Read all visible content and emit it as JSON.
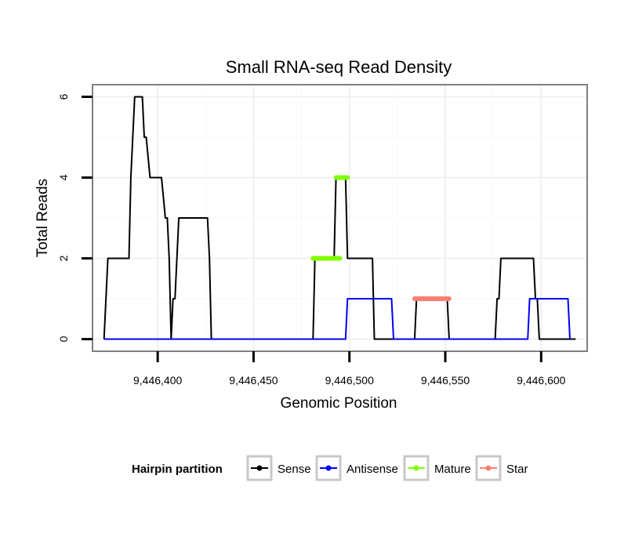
{
  "chart_data": {
    "type": "line",
    "title": "Small RNA-seq Read Density",
    "xlabel": "Genomic Position",
    "ylabel": "Total Reads",
    "xlim": [
      9446366,
      9446624
    ],
    "ylim": [
      -0.3,
      6.3
    ],
    "x_ticks": [
      9446400,
      9446450,
      9446500,
      9446550,
      9446600
    ],
    "x_tick_labels": [
      "9,446,400",
      "9,446,450",
      "9,446,500",
      "9,446,550",
      "9,446,600"
    ],
    "y_ticks": [
      0,
      2,
      4,
      6
    ],
    "y_tick_labels": [
      "0",
      "2",
      "4",
      "6"
    ],
    "grid": true,
    "legend": {
      "title": "Hairpin partition",
      "position": "bottom",
      "entries": [
        {
          "label": "Sense",
          "color": "#000000"
        },
        {
          "label": "Antisense",
          "color": "#0000ff"
        },
        {
          "label": "Mature",
          "color": "#7fff00"
        },
        {
          "label": "Star",
          "color": "#fa8072"
        }
      ]
    },
    "series": [
      {
        "name": "Sense",
        "color": "#000000",
        "x": [
          9446372,
          9446374,
          9446380,
          9446385,
          9446386,
          9446388,
          9446392,
          9446393,
          9446394,
          9446396,
          9446402,
          9446403,
          9446404,
          9446405,
          9446406,
          9446407,
          9446408,
          9446409,
          9446411,
          9446426,
          9446427,
          9446428,
          9446481,
          9446482,
          9446492,
          9446493,
          9446498,
          9446499,
          9446512,
          9446513,
          9446534,
          9446535,
          9446551,
          9446552,
          9446576,
          9446577,
          9446578,
          9446579,
          9446596,
          9446597,
          9446598,
          9446599,
          9446618
        ],
        "y": [
          0,
          2,
          2,
          2,
          4,
          6,
          6,
          5,
          5,
          4,
          4,
          3.5,
          3,
          3,
          2,
          0,
          1,
          1,
          3,
          3,
          2,
          0,
          0,
          2,
          2,
          4,
          4,
          2,
          2,
          0,
          0,
          1,
          1,
          0,
          0,
          1,
          1,
          2,
          2,
          1,
          1,
          0,
          0
        ]
      },
      {
        "name": "Antisense",
        "color": "#0000ff",
        "x": [
          9446372,
          9446498,
          9446499,
          9446522,
          9446523,
          9446593,
          9446594,
          9446614,
          9446615
        ],
        "y": [
          0,
          0,
          1,
          1,
          0,
          0,
          1,
          1,
          0
        ]
      },
      {
        "name": "Mature",
        "color": "#7fff00",
        "segments": [
          {
            "x0": 9446481,
            "x1": 9446495,
            "y": 2
          },
          {
            "x0": 9446493,
            "x1": 9446499,
            "y": 4
          }
        ]
      },
      {
        "name": "Star",
        "color": "#fa8072",
        "segments": [
          {
            "x0": 9446534,
            "x1": 9446552,
            "y": 1
          }
        ]
      }
    ]
  }
}
